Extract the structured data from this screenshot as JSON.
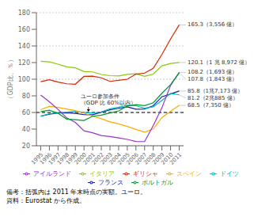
{
  "chart_data": {
    "type": "line",
    "ylabel": "（GDP比、％）",
    "x": [
      1995,
      1996,
      1997,
      1998,
      1999,
      2000,
      2001,
      2002,
      2003,
      2004,
      2005,
      2006,
      2007,
      2008,
      2009,
      2010,
      2011
    ],
    "xlim": [
      1994.5,
      2011.5
    ],
    "xticks": [
      1995,
      1996,
      1997,
      1998,
      1999,
      2000,
      2001,
      2002,
      2003,
      2004,
      2005,
      2006,
      2007,
      2008,
      2009,
      2010,
      2011
    ],
    "ylim": [
      20,
      180
    ],
    "yticks": [
      20,
      40,
      60,
      80,
      100,
      120,
      140,
      160,
      180
    ],
    "grid": true,
    "series": [
      {
        "name": "フランス",
        "color": "#1a1aaa",
        "values": [
          55.5,
          58.0,
          59.3,
          59.5,
          58.9,
          57.4,
          57.3,
          60.3,
          63.2,
          65.0,
          66.8,
          64.0,
          64.2,
          68.1,
          78.9,
          82.3,
          85.8
        ]
      },
      {
        "name": "ドイツ",
        "color": "#00bbbb",
        "values": [
          55.6,
          58.4,
          59.8,
          60.3,
          61.3,
          60.2,
          59.1,
          60.7,
          64.4,
          66.3,
          68.6,
          68.1,
          65.2,
          66.8,
          74.5,
          83.0,
          81.2
        ]
      },
      {
        "name": "イタリア",
        "color": "#88cc00",
        "values": [
          121.5,
          120.9,
          118.1,
          114.9,
          113.7,
          109.2,
          108.8,
          105.7,
          104.3,
          103.9,
          105.9,
          106.5,
          103.5,
          106.2,
          116.1,
          119.0,
          120.1
        ]
      },
      {
        "name": "スペイン",
        "color": "#ffaa00",
        "values": [
          63.3,
          67.4,
          66.1,
          64.1,
          62.3,
          59.3,
          55.5,
          52.5,
          48.7,
          46.3,
          43.2,
          39.7,
          36.3,
          40.2,
          53.9,
          61.5,
          68.5
        ]
      },
      {
        "name": "ギリシャ",
        "color": "#dd2200",
        "values": [
          97.0,
          99.4,
          96.6,
          94.5,
          94.0,
          103.4,
          103.7,
          101.7,
          97.4,
          98.6,
          100.0,
          106.1,
          107.4,
          113.0,
          129.7,
          148.3,
          165.3
        ]
      },
      {
        "name": "アイルランド",
        "color": "#9933cc",
        "values": [
          80.9,
          72.8,
          63.7,
          53.5,
          48.1,
          37.9,
          35.6,
          32.2,
          31.1,
          29.4,
          27.6,
          25.1,
          25.0,
          44.2,
          65.6,
          92.5,
          108.2
        ]
      },
      {
        "name": "ポルトガル",
        "color": "#009933",
        "values": [
          61.1,
          62.8,
          59.1,
          52.1,
          51.4,
          50.4,
          55.5,
          56.8,
          59.4,
          61.9,
          67.7,
          69.4,
          68.3,
          71.7,
          83.1,
          93.5,
          107.8
        ]
      }
    ],
    "reference_line": {
      "y": 60,
      "color": "black",
      "line_style": "dashed",
      "label": "ユーロ参加条件\n（GDP 比 60%以内）"
    },
    "annotations": [
      {
        "text": "165.3（3,556 億）",
        "x": 2011,
        "y": 165.3
      },
      {
        "text": "120.1（1 兆 8,972 億）",
        "x": 2011,
        "y": 120.1
      },
      {
        "text": "108.2（1,693 億）",
        "x": 2011,
        "y": 108.2
      },
      {
        "text": "107.8（1,843 億）",
        "x": 2011,
        "y": 107.8
      },
      {
        "text": "85.8（1兆7,173 億）",
        "x": 2011,
        "y": 85.8
      },
      {
        "text": "81.2（2兆885 億）",
        "x": 2011,
        "y": 81.2
      },
      {
        "text": "68.5（7,350 億）",
        "x": 2011,
        "y": 68.5
      }
    ],
    "legend": "bottom",
    "notes": [
      "備考：括弧内は 2011 年末時点の実額。ユーロ。",
      "資料：Eurostat から作成。"
    ]
  }
}
